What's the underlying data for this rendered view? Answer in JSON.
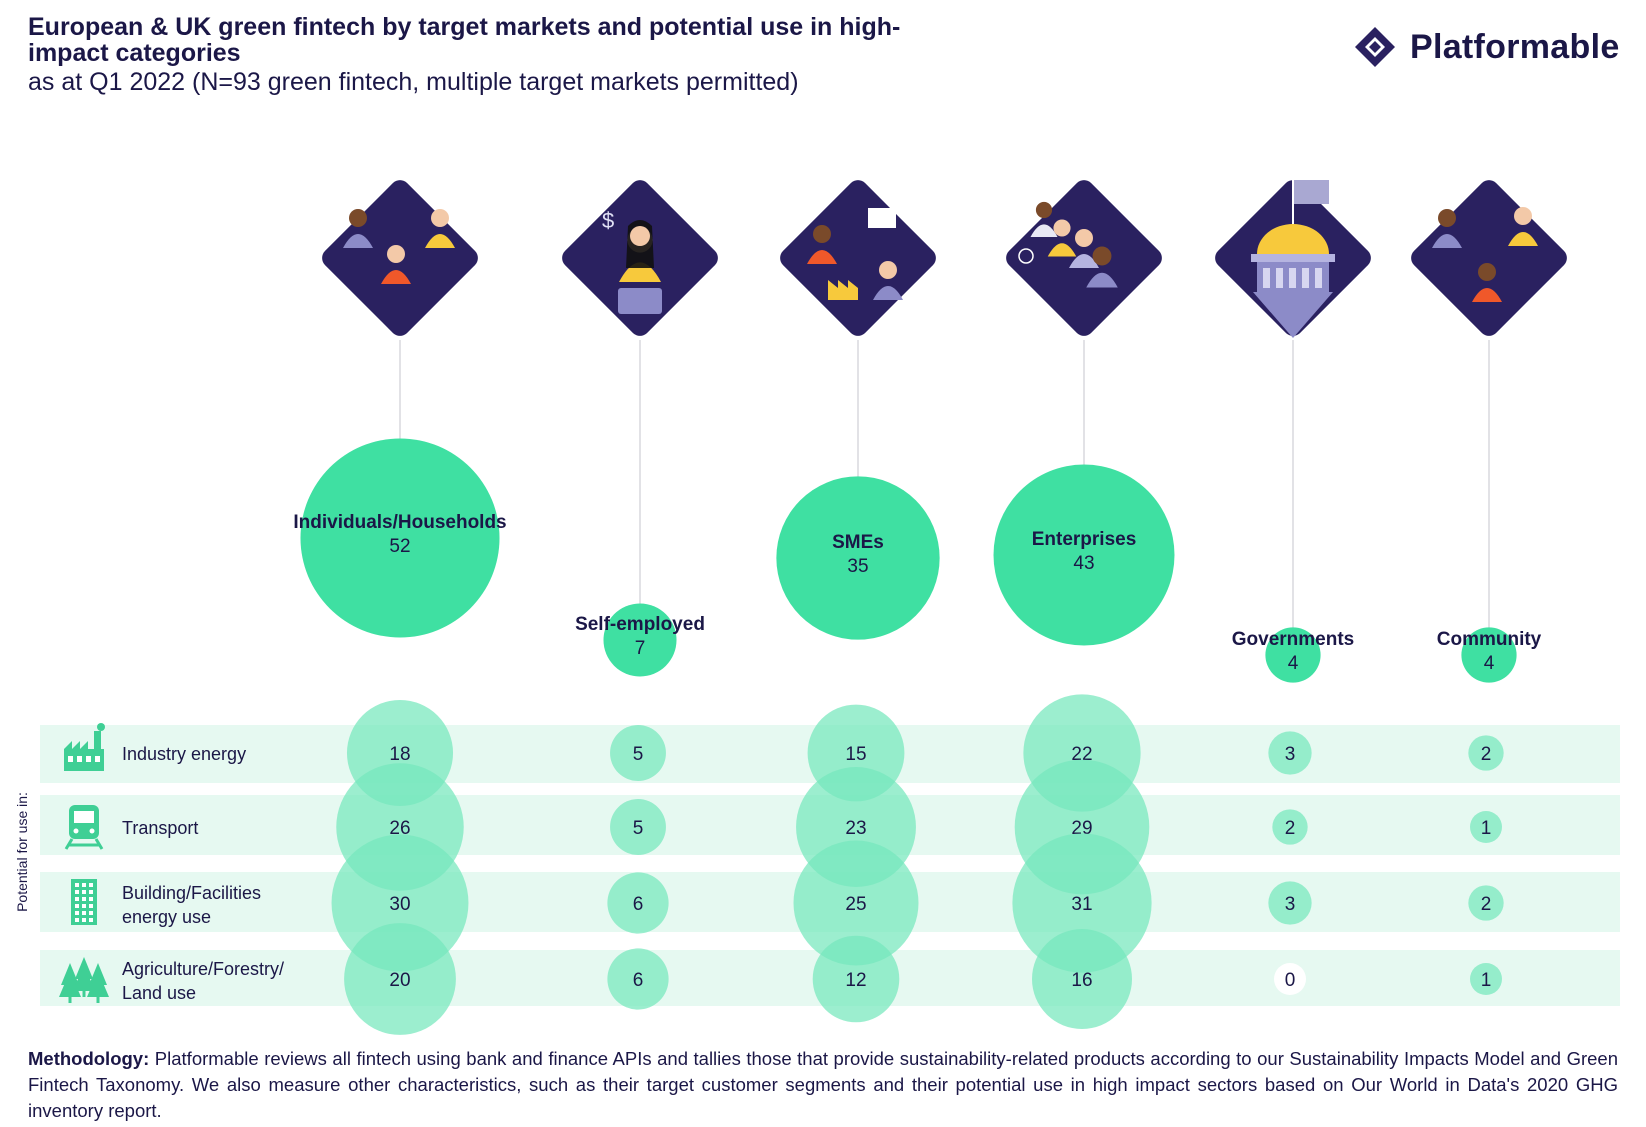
{
  "header": {
    "title": "European & UK green fintech by target markets and potential use in high-impact categories",
    "subtitle": "as at Q1 2022 (N=93 green fintech, multiple target markets permitted)"
  },
  "brand": {
    "name": "Platformable",
    "icon": "diamond-logo-icon"
  },
  "colors": {
    "navy": "#2a2160",
    "bubble_main": "#3fe0a2",
    "bubble_matrix": "#76e8bd",
    "row_band": "#e6f9f1",
    "text": "#1b1747",
    "stem": "#cfcfd6"
  },
  "chart_data": {
    "type": "bubble",
    "title": "European & UK green fintech by target markets and potential use in high-impact categories",
    "row_axis_label": "Potential for use in:",
    "target_markets": [
      {
        "name": "Individuals/Households",
        "count": 52,
        "icon": "people-group-icon"
      },
      {
        "name": "Self-employed",
        "count": 7,
        "icon": "freelancer-laptop-icon"
      },
      {
        "name": "SMEs",
        "count": 35,
        "icon": "small-business-icon"
      },
      {
        "name": "Enterprises",
        "count": 43,
        "icon": "corporate-team-icon"
      },
      {
        "name": "Governments",
        "count": 4,
        "icon": "government-building-icon"
      },
      {
        "name": "Community",
        "count": 4,
        "icon": "community-people-icon"
      }
    ],
    "categories": [
      {
        "name": "Industry energy",
        "icon": "factory-icon",
        "values": [
          18,
          5,
          15,
          22,
          3,
          2
        ]
      },
      {
        "name": "Transport",
        "icon": "train-icon",
        "values": [
          26,
          5,
          23,
          29,
          2,
          1
        ]
      },
      {
        "name": "Building/Facilities energy use",
        "icon": "building-icon",
        "values": [
          30,
          6,
          25,
          31,
          3,
          2
        ]
      },
      {
        "name": "Agriculture/Forestry/ Land use",
        "icon": "trees-icon",
        "values": [
          20,
          6,
          12,
          16,
          0,
          1
        ]
      }
    ]
  },
  "methodology": {
    "label": "Methodology:",
    "text": " Platformable reviews all fintech using bank and finance APIs and tallies those that provide sustainability-related products according to our Sustainability Impacts Model and Green Fintech Taxonomy. We also measure other characteristics, such as their target customer segments and their potential use in high impact sectors based on Our World in Data's 2020 GHG inventory report."
  }
}
